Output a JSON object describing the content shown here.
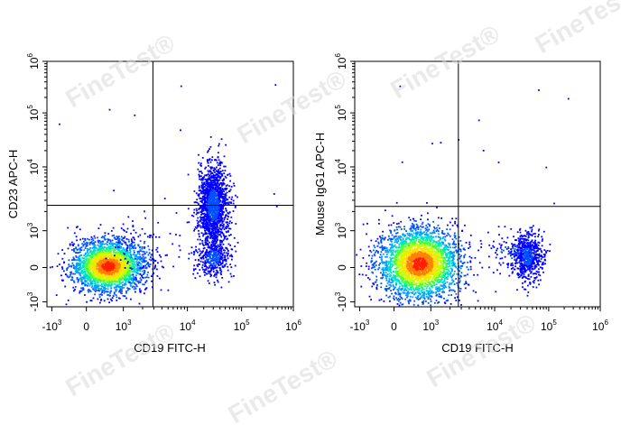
{
  "watermark": "FineTest",
  "watermark_mark": "®",
  "colors": {
    "density": [
      "#0000ff",
      "#0050ff",
      "#00a0ff",
      "#00e0c8",
      "#40ff40",
      "#c8ff00",
      "#ffe000",
      "#ff8000",
      "#ff2000"
    ],
    "gate": "#000000",
    "frame": "#000000"
  },
  "chart_data": [
    {
      "type": "scatter",
      "subtype": "flow-cytometry-density-plot",
      "xlabel": "CD19 FITC-H",
      "ylabel": "CD23 APC-H",
      "x_scale": "biexponential",
      "y_scale": "biexponential",
      "x_ticks": [
        {
          "base": "-10",
          "exp": "3",
          "value": -1000
        },
        {
          "base": "0",
          "exp": "",
          "value": 0
        },
        {
          "base": "10",
          "exp": "3",
          "value": 1000
        },
        {
          "base": "10",
          "exp": "4",
          "value": 10000
        },
        {
          "base": "10",
          "exp": "5",
          "value": 100000
        },
        {
          "base": "10",
          "exp": "6",
          "value": 1000000
        }
      ],
      "y_ticks": [
        {
          "base": "-10",
          "exp": "3",
          "value": -1000
        },
        {
          "base": "0",
          "exp": "",
          "value": 0
        },
        {
          "base": "10",
          "exp": "3",
          "value": 1000
        },
        {
          "base": "10",
          "exp": "4",
          "value": 10000
        },
        {
          "base": "10",
          "exp": "5",
          "value": 100000
        },
        {
          "base": "10",
          "exp": "6",
          "value": 1000000
        }
      ],
      "quadrant_gate": {
        "x": 2900,
        "y": 2500
      },
      "populations": [
        {
          "x": 600,
          "y": 30,
          "sx_dec": 0.28,
          "sy_dec": 0.2,
          "n": 2600,
          "density": "high"
        },
        {
          "x": 30000,
          "y": 2500,
          "sx_dec": 0.12,
          "sy_dec": 0.32,
          "n": 1500,
          "density": "low"
        },
        {
          "x": 30000,
          "y": 250,
          "sx_dec": 0.14,
          "sy_dec": 0.15,
          "n": 400,
          "density": "low"
        },
        {
          "x": 1800,
          "y": 400,
          "sx_dec": 0.25,
          "sy_dec": 0.25,
          "n": 120,
          "density": "low"
        }
      ]
    },
    {
      "type": "scatter",
      "subtype": "flow-cytometry-density-plot",
      "xlabel": "CD19 FITC-H",
      "ylabel": "Mouse IgG1 APC-H",
      "x_scale": "biexponential",
      "y_scale": "biexponential",
      "x_ticks": [
        {
          "base": "-10",
          "exp": "3",
          "value": -1000
        },
        {
          "base": "0",
          "exp": "",
          "value": 0
        },
        {
          "base": "10",
          "exp": "3",
          "value": 1000
        },
        {
          "base": "10",
          "exp": "4",
          "value": 10000
        },
        {
          "base": "10",
          "exp": "5",
          "value": 100000
        },
        {
          "base": "10",
          "exp": "6",
          "value": 1000000
        }
      ],
      "y_ticks": [
        {
          "base": "-10",
          "exp": "3",
          "value": -1000
        },
        {
          "base": "0",
          "exp": "",
          "value": 0
        },
        {
          "base": "10",
          "exp": "3",
          "value": 1000
        },
        {
          "base": "10",
          "exp": "4",
          "value": 10000
        },
        {
          "base": "10",
          "exp": "5",
          "value": 100000
        },
        {
          "base": "10",
          "exp": "6",
          "value": 1000000
        }
      ],
      "quadrant_gate": {
        "x": 2700,
        "y": 2400
      },
      "populations": [
        {
          "x": 700,
          "y": 100,
          "sx_dec": 0.32,
          "sy_dec": 0.28,
          "n": 3000,
          "density": "high"
        },
        {
          "x": 40000,
          "y": 300,
          "sx_dec": 0.12,
          "sy_dec": 0.18,
          "n": 650,
          "density": "low"
        },
        {
          "x": 20000,
          "y": 400,
          "sx_dec": 0.2,
          "sy_dec": 0.2,
          "n": 80,
          "density": "low"
        }
      ]
    }
  ]
}
